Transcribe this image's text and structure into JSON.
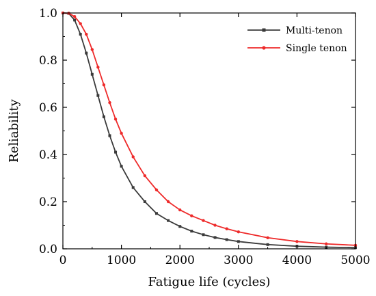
{
  "chart_data": {
    "type": "line",
    "xlabel": "Fatigue life (cycles)",
    "ylabel": "Reliability",
    "xlim": [
      0,
      5000
    ],
    "ylim": [
      0.0,
      1.0
    ],
    "x_ticks": [
      0,
      1000,
      2000,
      3000,
      4000,
      5000
    ],
    "x_tick_labels": [
      "0",
      "1000",
      "2000",
      "3000",
      "4000",
      "5000"
    ],
    "y_ticks": [
      0.0,
      0.2,
      0.4,
      0.6,
      0.8,
      1.0
    ],
    "y_tick_labels": [
      "0.0",
      "0.2",
      "0.4",
      "0.6",
      "0.8",
      "1.0"
    ],
    "grid": false,
    "legend_position": "top-right",
    "x": [
      0,
      100,
      200,
      300,
      400,
      500,
      600,
      700,
      800,
      900,
      1000,
      1200,
      1400,
      1600,
      1800,
      2000,
      2200,
      2400,
      2600,
      2800,
      3000,
      3500,
      4000,
      4500,
      5000
    ],
    "series": [
      {
        "name": "Multi-tenon",
        "color": "#3a3a3a",
        "marker": "square",
        "values": [
          1.0,
          0.998,
          0.97,
          0.91,
          0.83,
          0.74,
          0.65,
          0.56,
          0.48,
          0.41,
          0.35,
          0.26,
          0.2,
          0.15,
          0.12,
          0.095,
          0.075,
          0.06,
          0.048,
          0.039,
          0.031,
          0.018,
          0.011,
          0.007,
          0.005
        ]
      },
      {
        "name": "Single tenon",
        "color": "#ee2a2a",
        "marker": "circle",
        "values": [
          1.0,
          0.999,
          0.985,
          0.955,
          0.91,
          0.845,
          0.77,
          0.695,
          0.62,
          0.55,
          0.49,
          0.39,
          0.31,
          0.25,
          0.2,
          0.165,
          0.14,
          0.12,
          0.1,
          0.085,
          0.072,
          0.047,
          0.031,
          0.021,
          0.015
        ]
      }
    ]
  }
}
